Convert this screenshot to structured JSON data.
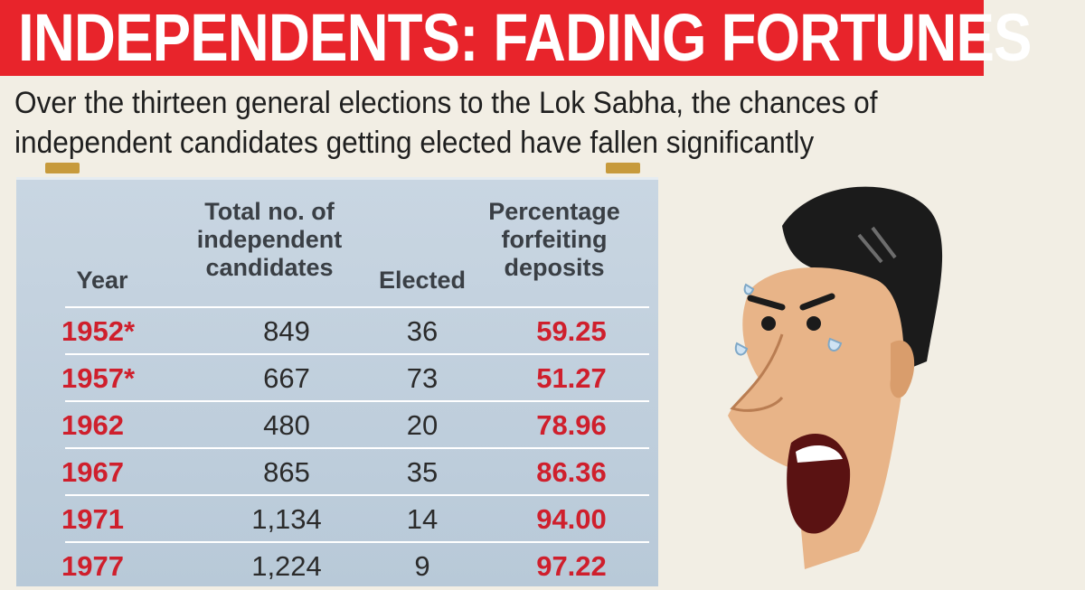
{
  "chart_data": {
    "type": "table",
    "title": "INDEPENDENTS: FADING FORTUNES",
    "subtitle": "Over the thirteen general elections to the Lok Sabha, the chances of independent candidates getting elected have fallen significantly",
    "columns": [
      "Year",
      "Total no. of independent candidates",
      "Elected",
      "Percentage forfeiting deposits"
    ],
    "rows": [
      {
        "year": "1952*",
        "total": "849",
        "elected": "36",
        "percent": "59.25"
      },
      {
        "year": "1957*",
        "total": "667",
        "elected": "73",
        "percent": "51.27"
      },
      {
        "year": "1962",
        "total": "480",
        "elected": "20",
        "percent": "78.96"
      },
      {
        "year": "1967",
        "total": "865",
        "elected": "35",
        "percent": "86.36"
      },
      {
        "year": "1971",
        "total": "1,134",
        "elected": "14",
        "percent": "94.00"
      },
      {
        "year": "1977",
        "total": "1,224",
        "elected": "9",
        "percent": "97.22"
      }
    ]
  },
  "colors": {
    "banner": "#e8242b",
    "highlight_text": "#cf1f2c",
    "table_bg": "#c2d1df",
    "page_bg": "#f2eee4"
  },
  "illustration": {
    "icon": "crying-man-face-icon"
  }
}
